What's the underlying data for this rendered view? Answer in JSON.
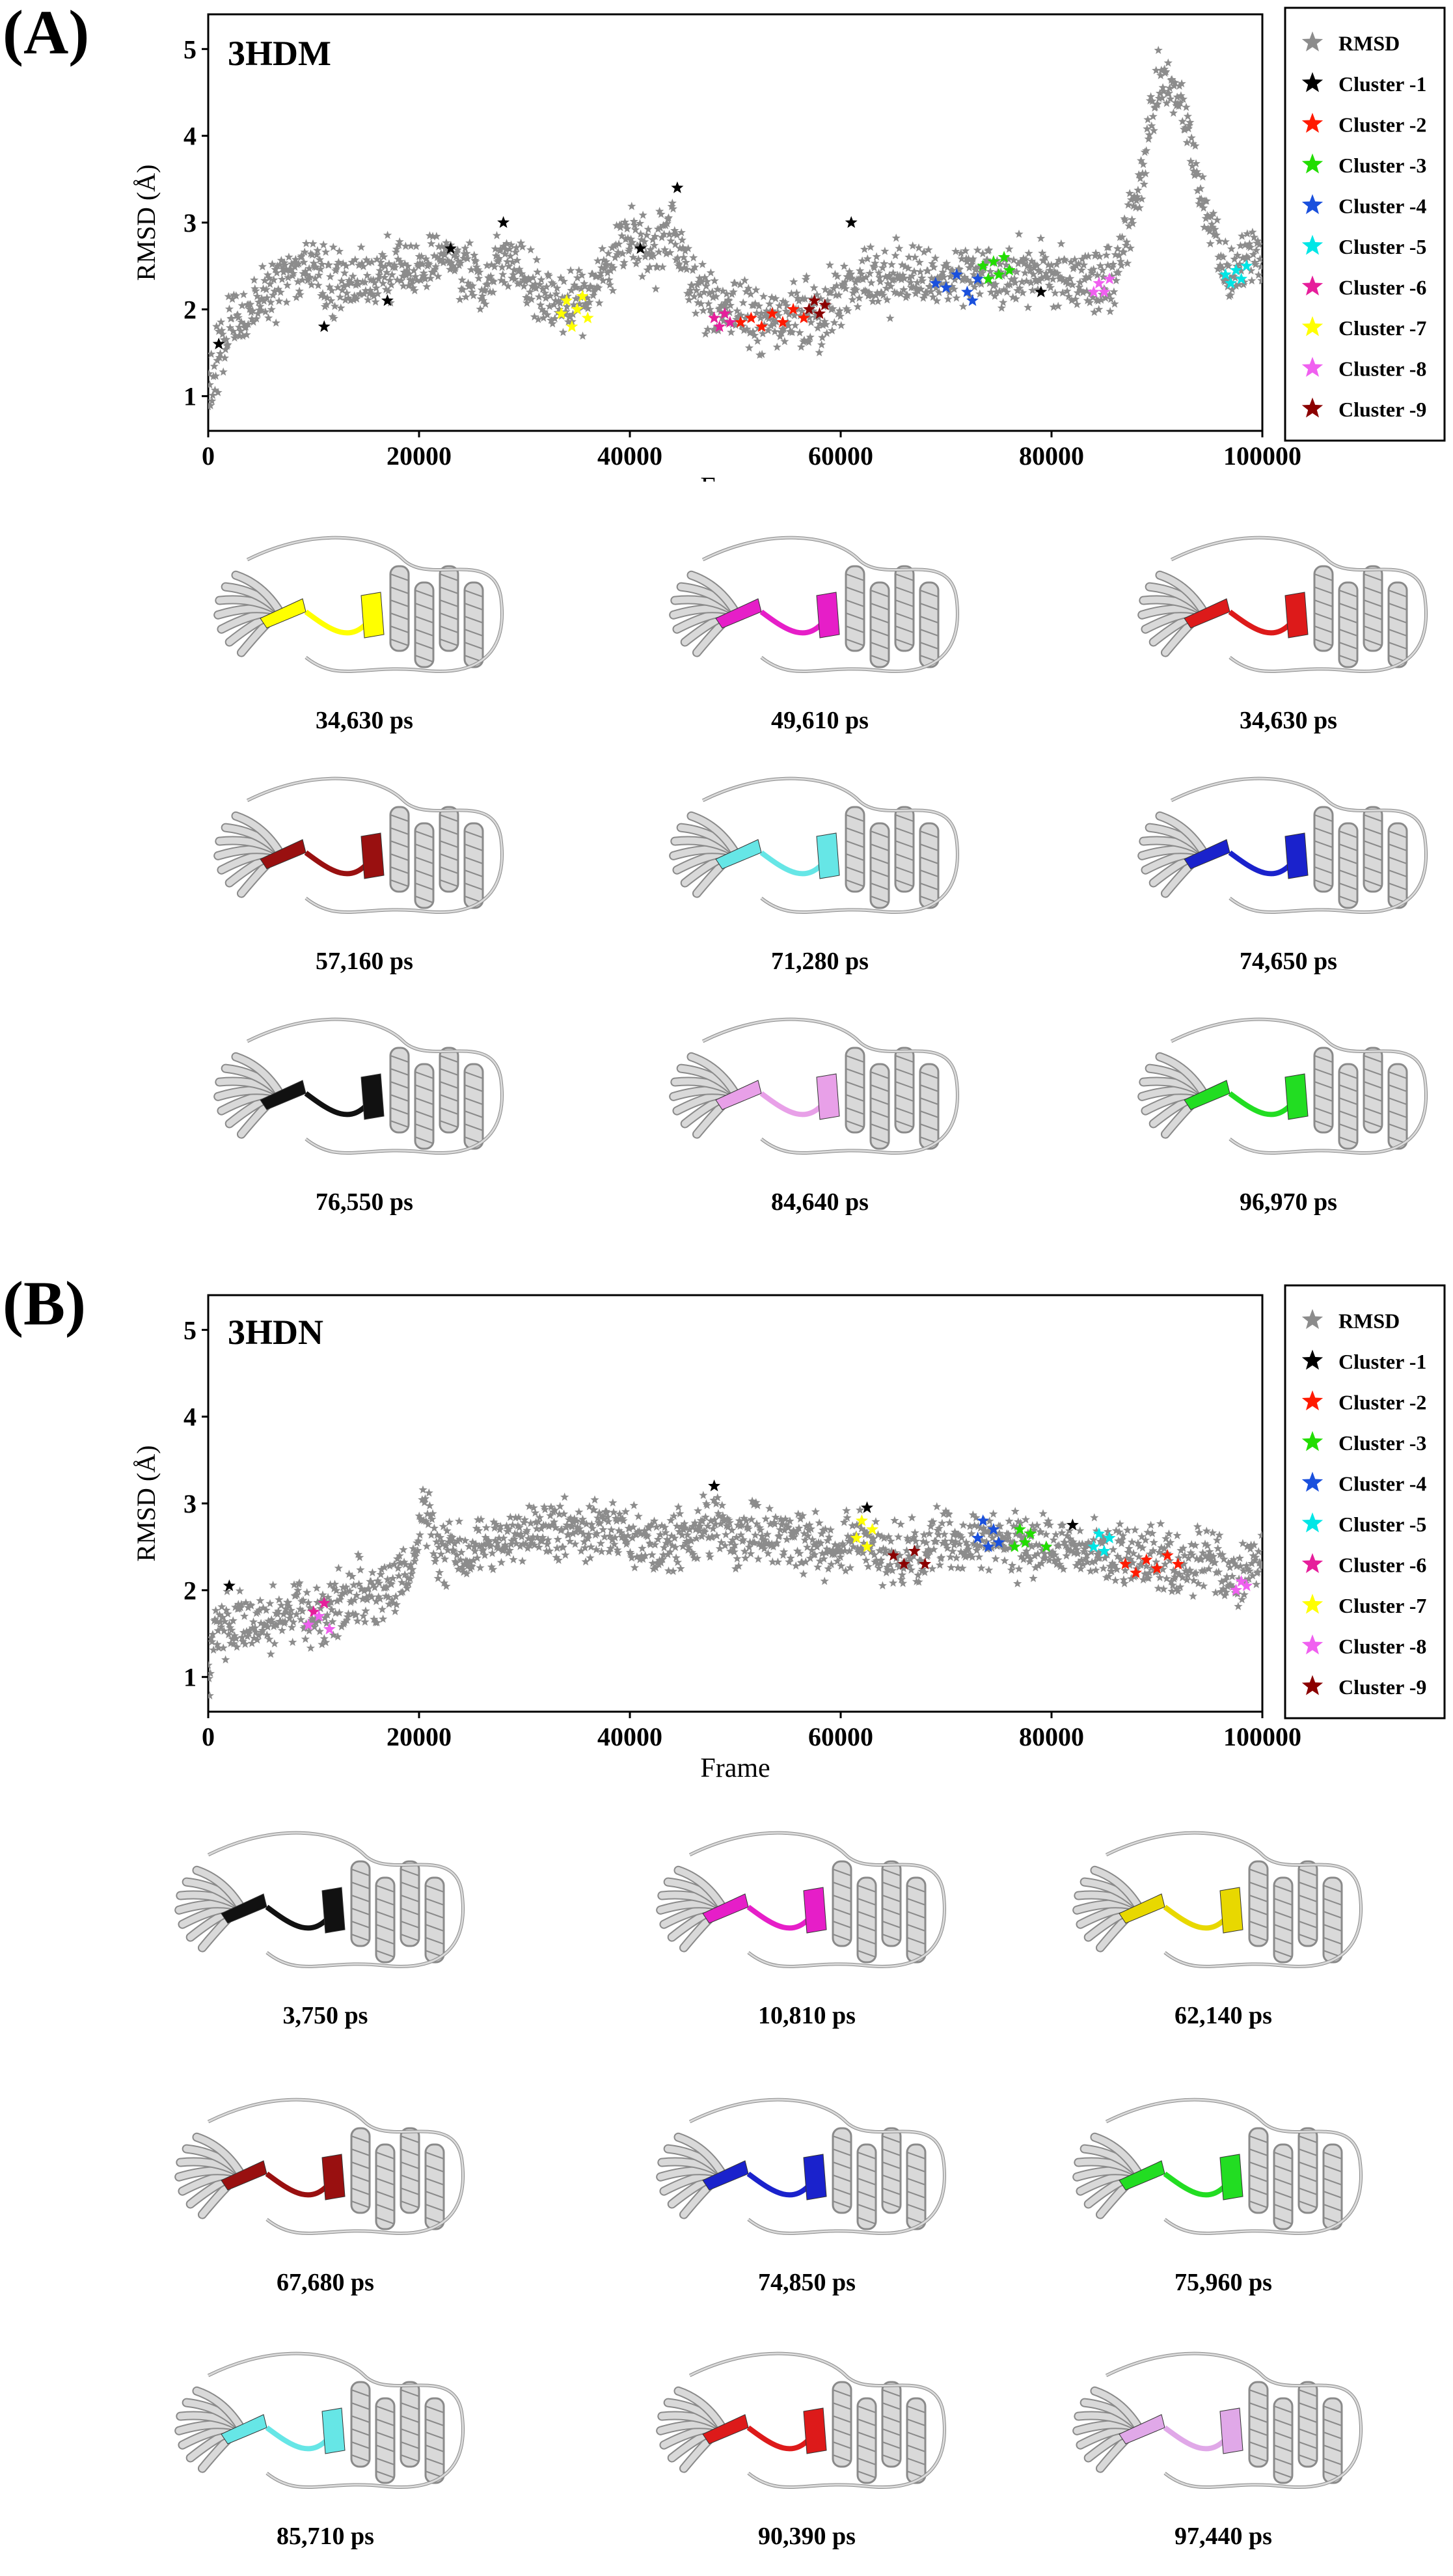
{
  "panels": [
    {
      "label": "(A)",
      "chart_title": "3HDM",
      "chart_data": {
        "type": "scatter",
        "title": "3HDM",
        "xlabel": "Frame",
        "ylabel": "RMSD (Å)",
        "xlim": [
          0,
          100000
        ],
        "ylim": [
          0.6,
          5.4
        ],
        "xticks": [
          0,
          20000,
          40000,
          60000,
          80000,
          100000
        ],
        "yticks": [
          1,
          2,
          3,
          4,
          5
        ],
        "legend_position": "right-outside",
        "rmsd_profile": [
          [
            0,
            1.0
          ],
          [
            800,
            1.4
          ],
          [
            2000,
            1.8
          ],
          [
            4000,
            2.0
          ],
          [
            6000,
            2.2
          ],
          [
            8000,
            2.4
          ],
          [
            10000,
            2.5
          ],
          [
            12000,
            2.2
          ],
          [
            14000,
            2.3
          ],
          [
            16000,
            2.3
          ],
          [
            18000,
            2.5
          ],
          [
            20000,
            2.4
          ],
          [
            22000,
            2.6
          ],
          [
            24000,
            2.5
          ],
          [
            26000,
            2.3
          ],
          [
            28000,
            2.6
          ],
          [
            30000,
            2.4
          ],
          [
            32000,
            2.1
          ],
          [
            34000,
            2.0
          ],
          [
            36000,
            2.2
          ],
          [
            38000,
            2.5
          ],
          [
            40000,
            2.9
          ],
          [
            42000,
            2.6
          ],
          [
            44000,
            2.9
          ],
          [
            46000,
            2.3
          ],
          [
            48000,
            2.0
          ],
          [
            50000,
            1.95
          ],
          [
            52000,
            1.9
          ],
          [
            54000,
            1.9
          ],
          [
            56000,
            2.0
          ],
          [
            58000,
            1.9
          ],
          [
            60000,
            2.2
          ],
          [
            62000,
            2.4
          ],
          [
            64000,
            2.3
          ],
          [
            66000,
            2.4
          ],
          [
            68000,
            2.3
          ],
          [
            70000,
            2.35
          ],
          [
            72000,
            2.4
          ],
          [
            74000,
            2.45
          ],
          [
            76000,
            2.4
          ],
          [
            78000,
            2.5
          ],
          [
            80000,
            2.4
          ],
          [
            82000,
            2.4
          ],
          [
            84000,
            2.3
          ],
          [
            86000,
            2.4
          ],
          [
            88000,
            3.2
          ],
          [
            89000,
            3.8
          ],
          [
            90000,
            4.5
          ],
          [
            91000,
            4.6
          ],
          [
            92000,
            4.4
          ],
          [
            93000,
            4.0
          ],
          [
            94000,
            3.4
          ],
          [
            95000,
            3.0
          ],
          [
            96000,
            2.6
          ],
          [
            97000,
            2.4
          ],
          [
            98000,
            2.5
          ],
          [
            99000,
            2.6
          ],
          [
            100000,
            2.6
          ]
        ],
        "series": [
          {
            "name": "RMSD",
            "color": "#8c8c8c"
          },
          {
            "name": "Cluster -1",
            "color": "#000000",
            "points": [
              [
                1000,
                1.6
              ],
              [
                11000,
                1.8
              ],
              [
                17000,
                2.1
              ],
              [
                23000,
                2.7
              ],
              [
                28000,
                3.0
              ],
              [
                41000,
                2.7
              ],
              [
                44500,
                3.4
              ],
              [
                61000,
                3.0
              ],
              [
                79000,
                2.2
              ]
            ]
          },
          {
            "name": "Cluster -2",
            "color": "#ff1a00",
            "points": [
              [
                50500,
                1.85
              ],
              [
                51500,
                1.9
              ],
              [
                52500,
                1.8
              ],
              [
                53500,
                1.95
              ],
              [
                54500,
                1.85
              ],
              [
                55500,
                2.0
              ],
              [
                56500,
                1.9
              ]
            ]
          },
          {
            "name": "Cluster -3",
            "color": "#22dd00",
            "points": [
              [
                73500,
                2.5
              ],
              [
                74000,
                2.35
              ],
              [
                74500,
                2.55
              ],
              [
                75000,
                2.4
              ],
              [
                75500,
                2.6
              ],
              [
                76000,
                2.45
              ]
            ]
          },
          {
            "name": "Cluster -4",
            "color": "#1a50dd",
            "points": [
              [
                69000,
                2.3
              ],
              [
                70000,
                2.25
              ],
              [
                71000,
                2.4
              ],
              [
                72000,
                2.2
              ],
              [
                73000,
                2.35
              ],
              [
                72500,
                2.1
              ]
            ]
          },
          {
            "name": "Cluster -5",
            "color": "#00e6e6",
            "points": [
              [
                96500,
                2.4
              ],
              [
                97000,
                2.3
              ],
              [
                97500,
                2.45
              ],
              [
                98000,
                2.35
              ],
              [
                98500,
                2.5
              ]
            ]
          },
          {
            "name": "Cluster -6",
            "color": "#e61e9b",
            "points": [
              [
                48000,
                1.9
              ],
              [
                48500,
                1.8
              ],
              [
                49000,
                1.95
              ],
              [
                49500,
                1.85
              ]
            ]
          },
          {
            "name": "Cluster -7",
            "color": "#ffff00",
            "points": [
              [
                33500,
                1.95
              ],
              [
                34000,
                2.1
              ],
              [
                34500,
                1.8
              ],
              [
                35000,
                2.0
              ],
              [
                35500,
                2.15
              ],
              [
                36000,
                1.9
              ]
            ]
          },
          {
            "name": "Cluster -8",
            "color": "#f060f0",
            "points": [
              [
                84000,
                2.2
              ],
              [
                84500,
                2.3
              ],
              [
                85000,
                2.2
              ],
              [
                85500,
                2.35
              ]
            ]
          },
          {
            "name": "Cluster -9",
            "color": "#8b0000",
            "points": [
              [
                57000,
                2.0
              ],
              [
                57500,
                2.1
              ],
              [
                58000,
                1.95
              ],
              [
                58500,
                2.05
              ]
            ]
          }
        ]
      },
      "structures": [
        {
          "caption": "34,630 ps",
          "color": "#ffff00"
        },
        {
          "caption": "49,610 ps",
          "color": "#e61ec8"
        },
        {
          "caption": "34,630 ps",
          "color": "#dd1a1a"
        },
        {
          "caption": "57,160 ps",
          "color": "#991010"
        },
        {
          "caption": "71,280 ps",
          "color": "#66e6e6"
        },
        {
          "caption": "74,650 ps",
          "color": "#1a22cc"
        },
        {
          "caption": "76,550 ps",
          "color": "#111111"
        },
        {
          "caption": "84,640 ps",
          "color": "#e8a0e8"
        },
        {
          "caption": "96,970 ps",
          "color": "#22dd22"
        }
      ]
    },
    {
      "label": "(B)",
      "chart_title": "3HDN",
      "chart_data": {
        "type": "scatter",
        "title": "3HDN",
        "xlabel": "Frame",
        "ylabel": "RMSD (Å)",
        "xlim": [
          0,
          100000
        ],
        "ylim": [
          0.6,
          5.4
        ],
        "xticks": [
          0,
          20000,
          40000,
          60000,
          80000,
          100000
        ],
        "yticks": [
          1,
          2,
          3,
          4,
          5
        ],
        "legend_position": "right-outside",
        "rmsd_profile": [
          [
            0,
            1.0
          ],
          [
            600,
            1.5
          ],
          [
            2000,
            1.65
          ],
          [
            4000,
            1.6
          ],
          [
            6000,
            1.65
          ],
          [
            8000,
            1.7
          ],
          [
            10000,
            1.7
          ],
          [
            12000,
            1.8
          ],
          [
            14000,
            1.9
          ],
          [
            16000,
            2.0
          ],
          [
            18000,
            2.1
          ],
          [
            19500,
            2.3
          ],
          [
            20500,
            2.9
          ],
          [
            22000,
            2.5
          ],
          [
            24000,
            2.4
          ],
          [
            26000,
            2.5
          ],
          [
            28000,
            2.55
          ],
          [
            30000,
            2.6
          ],
          [
            32000,
            2.7
          ],
          [
            34000,
            2.75
          ],
          [
            36000,
            2.65
          ],
          [
            38000,
            2.7
          ],
          [
            40000,
            2.6
          ],
          [
            42000,
            2.55
          ],
          [
            44000,
            2.6
          ],
          [
            46000,
            2.65
          ],
          [
            48000,
            2.75
          ],
          [
            50000,
            2.6
          ],
          [
            52000,
            2.65
          ],
          [
            54000,
            2.6
          ],
          [
            56000,
            2.6
          ],
          [
            58000,
            2.55
          ],
          [
            60000,
            2.5
          ],
          [
            62000,
            2.6
          ],
          [
            64000,
            2.45
          ],
          [
            66000,
            2.4
          ],
          [
            68000,
            2.5
          ],
          [
            70000,
            2.6
          ],
          [
            72000,
            2.55
          ],
          [
            74000,
            2.6
          ],
          [
            76000,
            2.5
          ],
          [
            78000,
            2.5
          ],
          [
            80000,
            2.55
          ],
          [
            82000,
            2.5
          ],
          [
            84000,
            2.45
          ],
          [
            86000,
            2.4
          ],
          [
            88000,
            2.35
          ],
          [
            90000,
            2.35
          ],
          [
            92000,
            2.3
          ],
          [
            94000,
            2.35
          ],
          [
            96000,
            2.3
          ],
          [
            98000,
            2.1
          ],
          [
            100000,
            2.3
          ]
        ],
        "series": [
          {
            "name": "RMSD",
            "color": "#8c8c8c"
          },
          {
            "name": "Cluster -1",
            "color": "#000000",
            "points": [
              [
                2000,
                2.05
              ],
              [
                48000,
                3.2
              ],
              [
                62500,
                2.95
              ],
              [
                82000,
                2.75
              ]
            ]
          },
          {
            "name": "Cluster -2",
            "color": "#ff1a00",
            "points": [
              [
                87000,
                2.3
              ],
              [
                88000,
                2.2
              ],
              [
                89000,
                2.35
              ],
              [
                90000,
                2.25
              ],
              [
                91000,
                2.4
              ],
              [
                92000,
                2.3
              ]
            ]
          },
          {
            "name": "Cluster -3",
            "color": "#22dd00",
            "points": [
              [
                76500,
                2.5
              ],
              [
                77000,
                2.7
              ],
              [
                77500,
                2.55
              ],
              [
                78000,
                2.65
              ],
              [
                79500,
                2.5
              ]
            ]
          },
          {
            "name": "Cluster -4",
            "color": "#1a50dd",
            "points": [
              [
                73000,
                2.6
              ],
              [
                73500,
                2.8
              ],
              [
                74000,
                2.5
              ],
              [
                74500,
                2.7
              ],
              [
                75000,
                2.55
              ]
            ]
          },
          {
            "name": "Cluster -5",
            "color": "#00e6e6",
            "points": [
              [
                84000,
                2.5
              ],
              [
                84500,
                2.65
              ],
              [
                85000,
                2.45
              ],
              [
                85500,
                2.6
              ]
            ]
          },
          {
            "name": "Cluster -6",
            "color": "#e61e9b",
            "points": [
              [
                10000,
                1.75
              ],
              [
                11000,
                1.85
              ]
            ]
          },
          {
            "name": "Cluster -7",
            "color": "#ffff00",
            "points": [
              [
                61500,
                2.6
              ],
              [
                62000,
                2.8
              ],
              [
                62500,
                2.5
              ],
              [
                63000,
                2.7
              ]
            ]
          },
          {
            "name": "Cluster -8",
            "color": "#f060f0",
            "points": [
              [
                9500,
                1.6
              ],
              [
                10500,
                1.7
              ],
              [
                11500,
                1.55
              ],
              [
                97500,
                2.0
              ],
              [
                98000,
                2.1
              ],
              [
                98500,
                2.05
              ]
            ]
          },
          {
            "name": "Cluster -9",
            "color": "#8b0000",
            "points": [
              [
                65000,
                2.4
              ],
              [
                66000,
                2.3
              ],
              [
                67000,
                2.45
              ],
              [
                68000,
                2.3
              ]
            ]
          }
        ]
      },
      "structures": [
        {
          "caption": "3,750 ps",
          "color": "#111111"
        },
        {
          "caption": "10,810 ps",
          "color": "#e61ec8"
        },
        {
          "caption": "62,140 ps",
          "color": "#e8d800"
        },
        {
          "caption": "67,680 ps",
          "color": "#991010"
        },
        {
          "caption": "74,850 ps",
          "color": "#1a22cc"
        },
        {
          "caption": "75,960 ps",
          "color": "#22dd22"
        },
        {
          "caption": "85,710 ps",
          "color": "#66e6e6"
        },
        {
          "caption": "90,390 ps",
          "color": "#dd1a1a"
        },
        {
          "caption": "97,440 ps",
          "color": "#e0a8e8"
        }
      ]
    }
  ]
}
